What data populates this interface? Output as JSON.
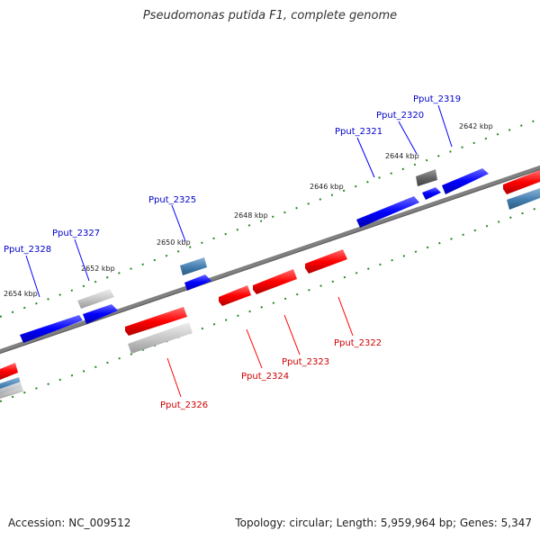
{
  "title": "Pseudomonas putida F1, complete genome",
  "footer": {
    "accession": "Accession: NC_009512",
    "summary": "Topology: circular; Length: 5,959,964 bp; Genes: 5,347"
  },
  "colors": {
    "forward_strand": "#0000ff",
    "reverse_strand": "#ff0000",
    "backbone": "#808080",
    "tick": "#228b22",
    "steelblue_feature": "#4682b4",
    "grey_feature": "#c0c0c0"
  },
  "scale_labels": [
    "2642 kbp",
    "2644 kbp",
    "2646 kbp",
    "2648 kbp",
    "2650 kbp",
    "2652 kbp",
    "2654 kbp"
  ],
  "gene_labels": {
    "forward": [
      "Pput_2319",
      "Pput_2320",
      "Pput_2321",
      "Pput_2325",
      "Pput_2327",
      "Pput_2328"
    ],
    "reverse": [
      "Pput_2322",
      "Pput_2323",
      "Pput_2324",
      "Pput_2326"
    ]
  }
}
